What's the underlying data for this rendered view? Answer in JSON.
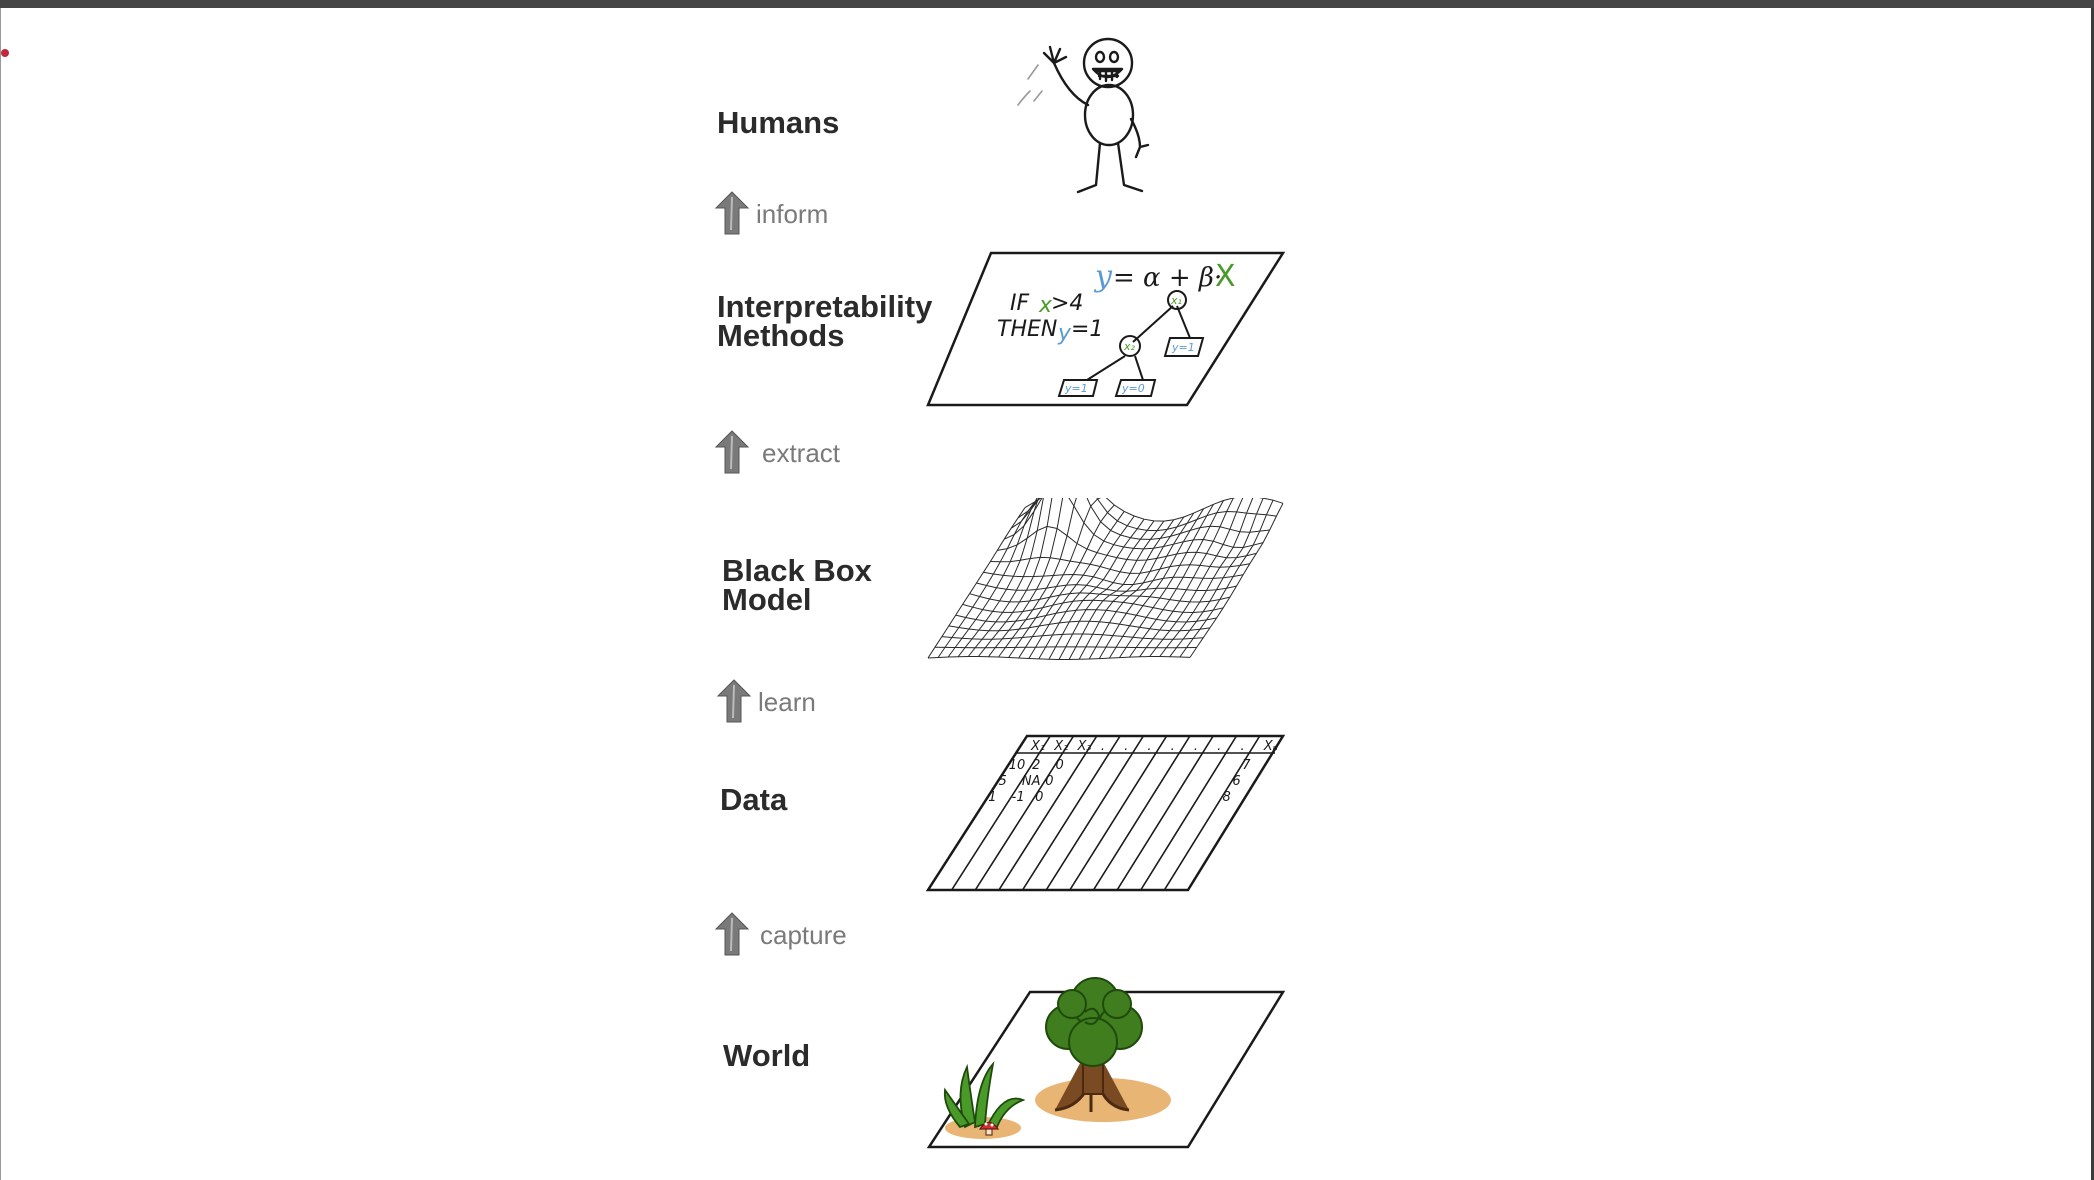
{
  "layers": {
    "humans": "Humans",
    "methods_line1": "Interpretability",
    "methods_line2": "Methods",
    "model_line1": "Black Box",
    "model_line2": "Model",
    "data": "Data",
    "world": "World"
  },
  "arrows": {
    "inform": "inform",
    "extract": "extract",
    "learn": "learn",
    "capture": "capture"
  },
  "methods_panel": {
    "formula_y": "y",
    "formula_mid": "= α + β·",
    "formula_x": "X",
    "rule_if": "IF",
    "rule_x": "x",
    "rule_cond": ">4",
    "rule_then": "THEN",
    "rule_y": "y",
    "rule_val": "=1",
    "node_top": "x₁",
    "node_mid": "x₂",
    "leaf_right": "y=1",
    "leaf_left": "y=1",
    "leaf_mid": "y=0"
  },
  "data_panel": {
    "headers": [
      "X₁",
      "X₂",
      "X₃",
      ".",
      ".",
      ".",
      ".",
      ".",
      ".",
      ".",
      "Xₙ"
    ],
    "col1": [
      "10",
      "5",
      "1"
    ],
    "col2": [
      "2",
      "NA",
      "-1"
    ],
    "col3": [
      "0",
      "0",
      "0"
    ],
    "col_last": [
      "7",
      "6",
      "8"
    ]
  },
  "colors": {
    "label_text": "#2b2b2b",
    "arrow_gray": "#7a7a7a",
    "formula_blue": "#5b9bd5",
    "formula_green": "#4a9a2a",
    "tree_green": "#3f7d1e",
    "trunk_brown": "#7a4a22",
    "ground_sand": "#e8b574",
    "mushroom_red": "#d32f2f"
  }
}
